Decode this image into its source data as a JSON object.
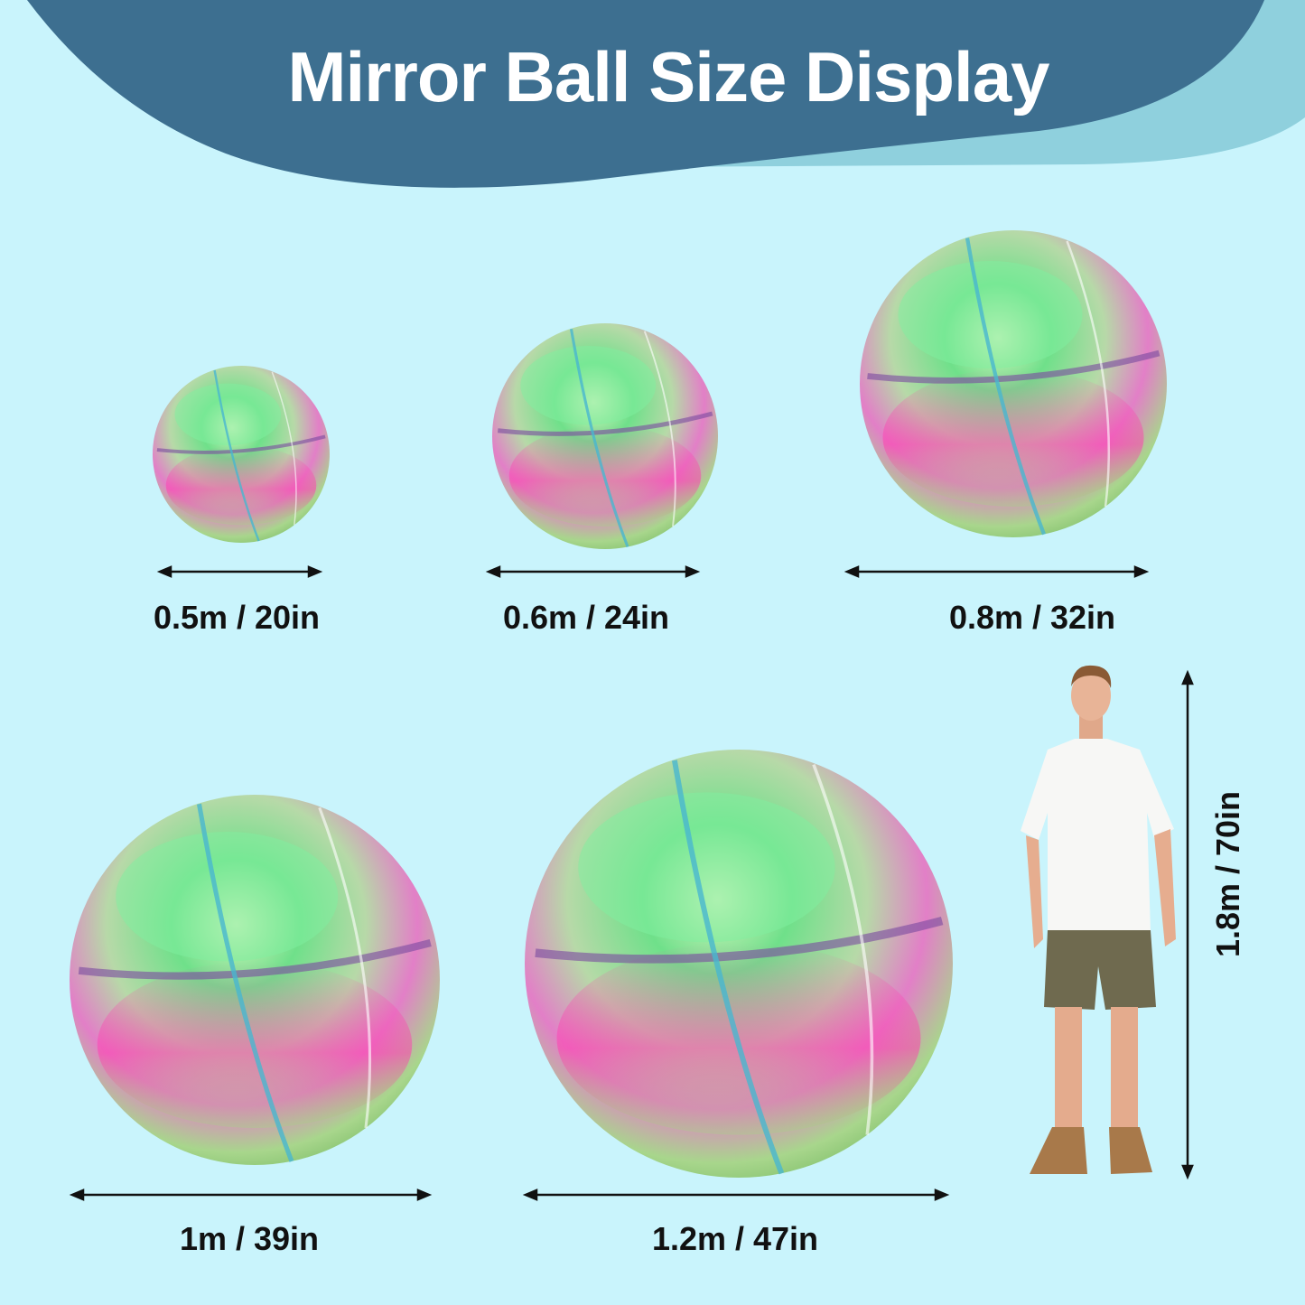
{
  "title": "Mirror Ball Size Display",
  "colors": {
    "background": "#c9f4fc",
    "header": "#3d6f90",
    "header_accent": "#8fd0dd"
  },
  "sizes": [
    {
      "label": "0.5m / 20in"
    },
    {
      "label": "0.6m / 24in"
    },
    {
      "label": "0.8m / 32in"
    },
    {
      "label": "1m / 39in"
    },
    {
      "label": "1.2m / 47in"
    }
  ],
  "person_height": "1.8m / 70in"
}
